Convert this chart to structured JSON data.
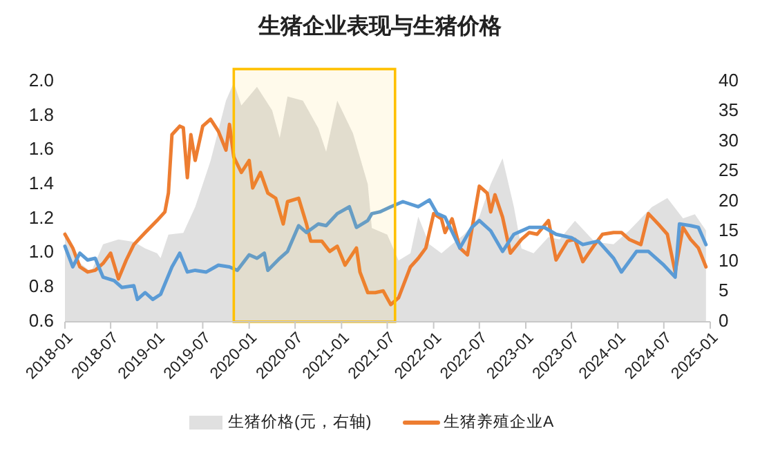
{
  "chart_data": {
    "type": "line",
    "title": "生猪企业表现与生猪价格",
    "xlim": [
      "2018-01",
      "2025-01"
    ],
    "xticks": [
      "2018-01",
      "2018-07",
      "2019-01",
      "2019-07",
      "2020-01",
      "2020-07",
      "2021-01",
      "2021-07",
      "2022-01",
      "2022-07",
      "2023-01",
      "2023-07",
      "2024-01",
      "2024-07",
      "2025-01"
    ],
    "ylim": [
      0.6,
      2.0
    ],
    "yticks": [
      0.6,
      0.8,
      {
        "value": 1,
        "label": "1.0"
      },
      1.2,
      1.4,
      1.6,
      1.8,
      {
        "value": 2,
        "label": "2.0"
      }
    ],
    "y2lim": [
      0,
      40
    ],
    "y2ticks": [
      0,
      5,
      10,
      15,
      20,
      25,
      30,
      35,
      40
    ],
    "legend": "bottom",
    "grid": false,
    "bands": [
      {
        "axis": "x",
        "from": "2019-11",
        "to": "2021-08",
        "color": "#ffc000"
      }
    ],
    "series": [
      {
        "name": "生猪价格(元，右轴)",
        "type": "area",
        "axis": "y2",
        "color": "#e0e0e0",
        "x": [
          "2018-01-01",
          "2018-02-01",
          "2018-03-01",
          "2018-04-15",
          "2018-06-01",
          "2018-08-01",
          "2018-10-01",
          "2018-11-15",
          "2019-01-01",
          "2019-01-15",
          "2019-02-15",
          "2019-04-15",
          "2019-06-01",
          "2019-08-01",
          "2019-10-01",
          "2019-11-01",
          "2019-12-01",
          "2020-02-01",
          "2020-04-01",
          "2020-05-01",
          "2020-06-01",
          "2020-08-01",
          "2020-10-01",
          "2020-11-01",
          "2020-12-15",
          "2021-02-15",
          "2021-04-15",
          "2021-05-01",
          "2021-07-01",
          "2021-08-15",
          "2021-10-01",
          "2021-11-01",
          "2021-12-15",
          "2022-02-01",
          "2022-03-15",
          "2022-05-01",
          "2022-07-01",
          "2022-08-15",
          "2022-10-01",
          "2022-11-15",
          "2022-12-15",
          "2023-02-01",
          "2023-04-01",
          "2023-05-15",
          "2023-07-15",
          "2023-10-01",
          "2023-12-15",
          "2024-02-15",
          "2024-05-15",
          "2024-07-15",
          "2024-09-15",
          "2024-11-01",
          "2024-12-15"
        ],
        "values": [
          15.2,
          11.4,
          9.8,
          8.3,
          12.9,
          13.7,
          13.3,
          12.2,
          11.4,
          10.6,
          14.5,
          14.8,
          19.1,
          26.8,
          36.8,
          39.8,
          36.0,
          39.1,
          35.2,
          30.6,
          37.5,
          36.8,
          32.2,
          28.3,
          36.8,
          31.4,
          22.9,
          15.6,
          14.5,
          10.2,
          11.4,
          17.5,
          12.9,
          11.4,
          12.9,
          14.5,
          17.5,
          22.9,
          27.2,
          19.1,
          12.2,
          11.4,
          14.1,
          13.7,
          16.8,
          13.3,
          12.9,
          15.2,
          19.1,
          20.6,
          17.2,
          17.9,
          15.2
        ]
      },
      {
        "name": "生猪养殖企业A",
        "color": "#ed7d31",
        "x": [
          "2018-01-01",
          "2018-02-01",
          "2018-03-01",
          "2018-04-01",
          "2018-05-01",
          "2018-06-01",
          "2018-07-01",
          "2018-08-01",
          "2018-09-01",
          "2018-10-01",
          "2018-11-15",
          "2019-01-01",
          "2019-02-01",
          "2019-02-15",
          "2019-03-01",
          "2019-04-01",
          "2019-04-15",
          "2019-05-01",
          "2019-05-15",
          "2019-06-01",
          "2019-07-01",
          "2019-08-01",
          "2019-09-01",
          "2019-10-01",
          "2019-10-15",
          "2019-11-01",
          "2019-12-01",
          "2020-01-01",
          "2020-01-15",
          "2020-02-15",
          "2020-03-15",
          "2020-04-15",
          "2020-05-15",
          "2020-06-01",
          "2020-07-15",
          "2020-08-15",
          "2020-09-01",
          "2020-10-15",
          "2020-11-15",
          "2020-12-15",
          "2021-01-15",
          "2021-03-01",
          "2021-03-15",
          "2021-04-15",
          "2021-05-15",
          "2021-06-15",
          "2021-07-15",
          "2021-08-15",
          "2021-10-01",
          "2021-11-01",
          "2021-12-01",
          "2022-01-01",
          "2022-02-01",
          "2022-02-15",
          "2022-03-15",
          "2022-04-15",
          "2022-05-15",
          "2022-07-01",
          "2022-08-01",
          "2022-08-15",
          "2022-09-01",
          "2022-10-01",
          "2022-11-01",
          "2022-12-15",
          "2023-01-15",
          "2023-02-15",
          "2023-04-01",
          "2023-05-01",
          "2023-06-15",
          "2023-07-15",
          "2023-08-15",
          "2023-10-01",
          "2023-11-01",
          "2023-12-15",
          "2024-01-15",
          "2024-02-15",
          "2024-04-01",
          "2024-05-01",
          "2024-06-15",
          "2024-07-15",
          "2024-08-15",
          "2024-09-15",
          "2024-10-15",
          "2024-11-15",
          "2024-12-15"
        ],
        "values": [
          1.11,
          1.03,
          0.92,
          0.89,
          0.9,
          0.94,
          1.0,
          0.85,
          0.96,
          1.05,
          1.12,
          1.19,
          1.24,
          1.35,
          1.69,
          1.74,
          1.73,
          1.44,
          1.69,
          1.54,
          1.74,
          1.78,
          1.71,
          1.6,
          1.75,
          1.56,
          1.47,
          1.54,
          1.38,
          1.47,
          1.35,
          1.32,
          1.17,
          1.3,
          1.32,
          1.17,
          1.07,
          1.07,
          1.01,
          1.04,
          0.93,
          1.03,
          0.89,
          0.77,
          0.77,
          0.78,
          0.7,
          0.74,
          0.92,
          0.97,
          1.03,
          1.23,
          1.2,
          1.12,
          1.2,
          1.03,
          0.99,
          1.39,
          1.35,
          1.24,
          1.34,
          1.21,
          1.0,
          1.08,
          1.12,
          1.11,
          1.19,
          0.96,
          1.07,
          1.08,
          0.95,
          1.05,
          1.11,
          1.12,
          1.12,
          1.08,
          1.05,
          1.23,
          1.16,
          1.11,
          0.89,
          1.15,
          1.08,
          1.03,
          0.92
        ]
      },
      {
        "color": "#5b9bd5",
        "x": [
          "2018-01-01",
          "2018-02-01",
          "2018-03-01",
          "2018-04-01",
          "2018-05-01",
          "2018-06-01",
          "2018-07-15",
          "2018-08-15",
          "2018-10-01",
          "2018-10-15",
          "2018-11-15",
          "2018-12-15",
          "2019-01-15",
          "2019-03-01",
          "2019-04-01",
          "2019-05-01",
          "2019-06-01",
          "2019-07-15",
          "2019-09-01",
          "2019-10-15",
          "2019-11-15",
          "2020-01-01",
          "2020-02-01",
          "2020-03-01",
          "2020-03-15",
          "2020-05-01",
          "2020-06-01",
          "2020-07-15",
          "2020-08-15",
          "2020-10-01",
          "2020-11-01",
          "2020-12-15",
          "2021-02-01",
          "2021-03-01",
          "2021-04-15",
          "2021-05-01",
          "2021-06-01",
          "2021-07-15",
          "2021-09-01",
          "2021-11-01",
          "2021-12-15",
          "2022-01-15",
          "2022-02-15",
          "2022-04-15",
          "2022-06-01",
          "2022-07-01",
          "2022-08-15",
          "2022-10-01",
          "2022-11-15",
          "2023-01-15",
          "2023-03-15",
          "2023-05-01",
          "2023-07-01",
          "2023-08-15",
          "2023-10-15",
          "2023-12-15",
          "2024-01-15",
          "2024-03-15",
          "2024-05-01",
          "2024-07-01",
          "2024-08-15",
          "2024-09-01",
          "2024-10-15",
          "2024-11-15",
          "2024-12-15"
        ],
        "values": [
          1.04,
          0.92,
          1.0,
          0.96,
          0.97,
          0.86,
          0.84,
          0.8,
          0.81,
          0.73,
          0.77,
          0.73,
          0.76,
          0.92,
          1.0,
          0.89,
          0.9,
          0.89,
          0.93,
          0.92,
          0.9,
          0.99,
          0.97,
          1.0,
          0.9,
          0.97,
          1.01,
          1.16,
          1.12,
          1.17,
          1.16,
          1.23,
          1.27,
          1.15,
          1.19,
          1.23,
          1.24,
          1.27,
          1.3,
          1.27,
          1.31,
          1.23,
          1.21,
          1.03,
          1.15,
          1.19,
          1.13,
          1.01,
          1.11,
          1.15,
          1.15,
          1.11,
          1.09,
          1.05,
          1.07,
          0.97,
          0.89,
          1.01,
          1.01,
          0.93,
          0.86,
          1.17,
          1.16,
          1.15,
          1.05
        ]
      }
    ]
  }
}
